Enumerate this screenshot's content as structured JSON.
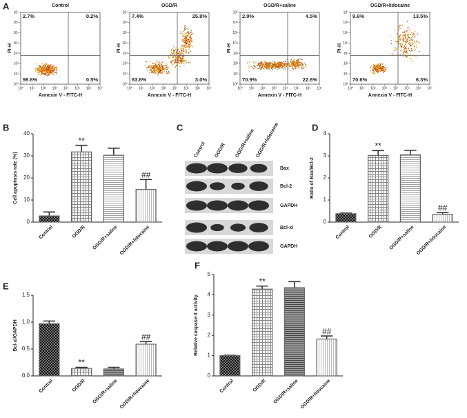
{
  "panel_labels": [
    "A",
    "B",
    "C",
    "D",
    "E",
    "F"
  ],
  "blot": {
    "columns": [
      "Control",
      "OGD/R",
      "OGD/R+saline",
      "OGD/R+lidocaine"
    ],
    "rows": [
      "Bax",
      "Bcl-2",
      "GAPDH",
      "Bcl-xl",
      "GAPDH"
    ]
  },
  "chart_data": [
    {
      "type": "flow",
      "title": "Control",
      "xlabel": "Annexin V - FITC-H",
      "ylabel": "PI-H",
      "log": true,
      "xlim": [
        1,
        10000000
      ],
      "ylim": [
        1,
        10000000
      ],
      "xticks": [
        {
          "value": 1,
          "label": "10⁰"
        },
        {
          "value": 10,
          "label": "10¹"
        },
        {
          "value": 100,
          "label": "10²"
        },
        {
          "value": 1000,
          "label": "10³"
        },
        {
          "value": 10000,
          "label": "10⁴"
        },
        {
          "value": 100000,
          "label": "10⁵"
        },
        {
          "value": 1000000,
          "label": "10⁶"
        },
        {
          "value": 10000000,
          "label": "10⁷"
        }
      ],
      "yticks": [
        {
          "value": 1,
          "label": "10⁰"
        },
        {
          "value": 10,
          "label": "10¹"
        },
        {
          "value": 100,
          "label": "10²"
        },
        {
          "value": 1000,
          "label": "10³"
        },
        {
          "value": 10000,
          "label": "10⁴"
        },
        {
          "value": 100000,
          "label": "10⁵"
        },
        {
          "value": 1000000,
          "label": "10⁶"
        },
        {
          "value": 10000000,
          "label": "10⁷"
        }
      ],
      "values": [
        2.7,
        0.2,
        96.6,
        0.5
      ],
      "value_labels": [
        "2.7%",
        "0.2%",
        "96.6%",
        "0.5%"
      ]
    },
    {
      "type": "flow",
      "title": "OGD/R",
      "xlabel": "Annexin V - FITC-H",
      "ylabel": "PI-H",
      "log": true,
      "xlim": [
        1,
        10000000
      ],
      "ylim": [
        1,
        10000000
      ],
      "xticks": [
        {
          "value": 1,
          "label": "10⁰"
        },
        {
          "value": 10,
          "label": "10¹"
        },
        {
          "value": 100,
          "label": "10²"
        },
        {
          "value": 1000,
          "label": "10³"
        },
        {
          "value": 10000,
          "label": "10⁴"
        },
        {
          "value": 100000,
          "label": "10⁵"
        },
        {
          "value": 1000000,
          "label": "10⁶"
        },
        {
          "value": 10000000,
          "label": "10⁷"
        }
      ],
      "yticks": [
        {
          "value": 1,
          "label": "10⁰"
        },
        {
          "value": 10,
          "label": "10¹"
        },
        {
          "value": 100,
          "label": "10²"
        },
        {
          "value": 1000,
          "label": "10³"
        },
        {
          "value": 10000,
          "label": "10⁴"
        },
        {
          "value": 100000,
          "label": "10⁵"
        },
        {
          "value": 1000000,
          "label": "10⁶"
        },
        {
          "value": 10000000,
          "label": "10⁷"
        }
      ],
      "values": [
        7.4,
        25.8,
        63.8,
        3.0
      ],
      "value_labels": [
        "7.4%",
        "25.8%",
        "63.8%",
        "3.0%"
      ]
    },
    {
      "type": "flow",
      "title": "OGD/R+saline",
      "xlabel": "Annexin V - FITC-H",
      "ylabel": "PI-H",
      "log": true,
      "xlim": [
        1,
        10000000
      ],
      "ylim": [
        1,
        10000000
      ],
      "xticks": [
        {
          "value": 1,
          "label": "10⁰"
        },
        {
          "value": 10,
          "label": "10¹"
        },
        {
          "value": 100,
          "label": "10²"
        },
        {
          "value": 1000,
          "label": "10³"
        },
        {
          "value": 10000,
          "label": "10⁴"
        },
        {
          "value": 100000,
          "label": "10⁵"
        },
        {
          "value": 1000000,
          "label": "10⁶"
        },
        {
          "value": 10000000,
          "label": "10⁷"
        }
      ],
      "yticks": [
        {
          "value": 1,
          "label": "10⁰"
        },
        {
          "value": 10,
          "label": "10¹"
        },
        {
          "value": 100,
          "label": "10²"
        },
        {
          "value": 1000,
          "label": "10³"
        },
        {
          "value": 10000,
          "label": "10⁴"
        },
        {
          "value": 100000,
          "label": "10⁵"
        },
        {
          "value": 1000000,
          "label": "10⁶"
        },
        {
          "value": 10000000,
          "label": "10⁷"
        }
      ],
      "values": [
        2.0,
        4.5,
        70.9,
        22.6
      ],
      "value_labels": [
        "2.0%",
        "4.5%",
        "70.9%",
        "22.6%"
      ]
    },
    {
      "type": "flow",
      "title": "OGD/R+lidocaine",
      "xlabel": "Annexin V - FITC-H",
      "ylabel": "PI-H",
      "log": true,
      "xlim": [
        1,
        10000000
      ],
      "ylim": [
        1,
        10000000
      ],
      "xticks": [
        {
          "value": 1,
          "label": "10⁰"
        },
        {
          "value": 10,
          "label": "10¹"
        },
        {
          "value": 100,
          "label": "10²"
        },
        {
          "value": 1000,
          "label": "10³"
        },
        {
          "value": 10000,
          "label": "10⁴"
        },
        {
          "value": 100000,
          "label": "10⁵"
        },
        {
          "value": 1000000,
          "label": "10⁶"
        },
        {
          "value": 10000000,
          "label": "10⁷"
        }
      ],
      "yticks": [
        {
          "value": 1,
          "label": "10⁰"
        },
        {
          "value": 10,
          "label": "10¹"
        },
        {
          "value": 100,
          "label": "10²"
        },
        {
          "value": 1000,
          "label": "10³"
        },
        {
          "value": 10000,
          "label": "10⁴"
        },
        {
          "value": 100000,
          "label": "10⁵"
        },
        {
          "value": 1000000,
          "label": "10⁶"
        },
        {
          "value": 10000000,
          "label": "10⁷"
        }
      ],
      "values": [
        9.6,
        13.5,
        70.6,
        6.3
      ],
      "value_labels": [
        "9.6%",
        "13.5%",
        "70.6%",
        "6.3%"
      ]
    },
    {
      "type": "bar",
      "ylabel": "Cell apoptosis rate (%)",
      "categories": [
        "Control",
        "OGD/R",
        "OGD/R+saline",
        "OGD/R+lidocaine"
      ],
      "values": [
        2.8,
        31.8,
        30.3,
        14.8
      ],
      "errors": [
        1.8,
        3.0,
        3.2,
        4.5
      ],
      "annotations": [
        null,
        "**",
        null,
        "##"
      ],
      "patterns": [
        "checker",
        "grid",
        "hlines",
        "vlines"
      ],
      "ylim": [
        0,
        40
      ],
      "yticks": [
        0,
        10,
        20,
        30,
        40
      ]
    },
    {
      "type": "bar",
      "ylabel": "Ratio of Bax/Bcl-2",
      "categories": [
        "Control",
        "OGD/R",
        "OGD/R+saline",
        "OGD/R+lidocaine"
      ],
      "values": [
        0.38,
        3.02,
        3.05,
        0.35
      ],
      "errors": [
        0.03,
        0.22,
        0.2,
        0.08
      ],
      "annotations": [
        null,
        "**",
        null,
        "##"
      ],
      "patterns": [
        "checker",
        "grid",
        "hlines",
        "vlines"
      ],
      "ylim": [
        0,
        4
      ],
      "yticks": [
        0,
        1,
        2,
        3,
        4
      ]
    },
    {
      "type": "bar",
      "ylabel": "Bcl-xl/GAPDH",
      "categories": [
        "Control",
        "OGD/R",
        "OGD/R+saline",
        "OGD/R+lidocaine"
      ],
      "values": [
        0.97,
        0.14,
        0.13,
        0.59
      ],
      "errors": [
        0.05,
        0.02,
        0.03,
        0.05
      ],
      "annotations": [
        null,
        "**",
        null,
        "##"
      ],
      "patterns": [
        "checker",
        "grid",
        "darklines",
        "vlines"
      ],
      "ylim": [
        0,
        1.5
      ],
      "yticks": [
        {
          "value": 0,
          "label": "0.0"
        },
        0.5,
        {
          "value": 1,
          "label": "1.0"
        },
        1.5
      ]
    },
    {
      "type": "bar",
      "ylabel": "Relative caspase-3 activity",
      "categories": [
        "Control",
        "OGD/R",
        "OGD/R+saline",
        "OGD/R+lidocaine"
      ],
      "values": [
        1.0,
        4.28,
        4.35,
        1.82
      ],
      "errors": [
        0.02,
        0.15,
        0.3,
        0.15
      ],
      "annotations": [
        null,
        "**",
        null,
        "##"
      ],
      "patterns": [
        "checker",
        "grid",
        "darklines",
        "vlines"
      ],
      "ylim": [
        0,
        5
      ],
      "yticks": [
        0,
        1,
        2,
        3,
        4,
        5
      ]
    }
  ]
}
